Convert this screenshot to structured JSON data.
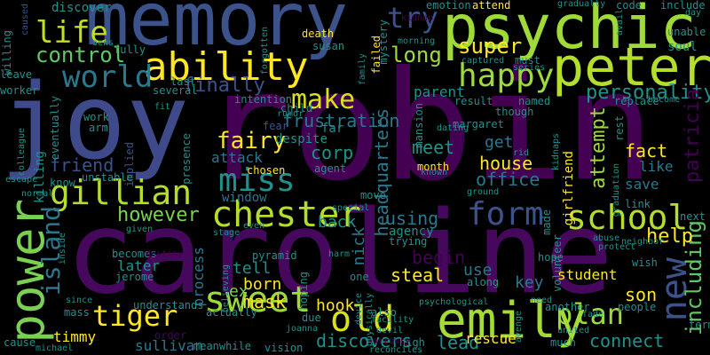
{
  "words": {
    "robin": "robin",
    "caroline": "caroline",
    "joy": "joy",
    "memory": "memory",
    "psychic": "psychic",
    "peter": "peter",
    "emily": "emily",
    "power": "power",
    "ability": "ability",
    "chester": "chester",
    "gillian": "gillian",
    "sweet": "sweet",
    "school": "school",
    "form": "form",
    "old": "old",
    "happy": "happy",
    "world": "world",
    "life": "life",
    "control": "control",
    "tiger": "tiger",
    "miss": "miss",
    "new": "new",
    "plan": "plan",
    "island": "island",
    "make": "make",
    "try": "try",
    "fairy": "fairy",
    "finally": "finally",
    "frustration": "frustration",
    "personality": "personality",
    "headquarters": "headquarters",
    "attempt": "attempt",
    "long": "long",
    "super": "super",
    "patricia": "patricia",
    "including": "including",
    "however": "however",
    "help": "help",
    "house": "house",
    "office": "office",
    "fact": "fact",
    "like": "like",
    "save": "save",
    "friend": "friend",
    "meet": "meet",
    "corp": "corp",
    "attack": "attack",
    "window": "window",
    "get": "get",
    "parent": "parent",
    "son": "son",
    "mask": "mask",
    "born": "born",
    "tell": "tell",
    "steal": "steal",
    "begin": "begin",
    "using": "using",
    "back": "back",
    "nick": "nick",
    "island2": "island",
    "hook": "hook",
    "discovers": "discovers",
    "lead": "lead",
    "rescue": "rescue",
    "connect": "connect",
    "timmy": "timmy",
    "sullivan": "sullivan",
    "student": "student",
    "key": "key",
    "use": "use",
    "process": "process",
    "later": "later",
    "jerome": "jerome",
    "becomes": "becomes",
    "understands": "understands",
    "actually": "actually",
    "killing": "killing",
    "implied": "implied",
    "work": "work",
    "arm": "arm",
    "eventually": "eventually",
    "discover": "discover",
    "emotion": "emotion",
    "attend": "attend",
    "code": "code",
    "include": "include",
    "unable": "unable",
    "soul": "soul",
    "avail": "avail",
    "death": "death",
    "susan": "susan",
    "mystery": "mystery",
    "failed": "failed",
    "family": "family",
    "forgotten": "forgotten",
    "caused": "caused",
    "willing": "willing",
    "sens": "sens",
    "leave": "leave",
    "worker": "worker",
    "last": "last",
    "several": "several",
    "intention": "intention",
    "child": "child",
    "rumor": "rumor",
    "fear": "fear",
    "far": "far",
    "despite": "despite",
    "margaret": "margaret",
    "dating": "dating",
    "mansion": "mansion",
    "named": "named",
    "though": "though",
    "result": "result",
    "replace": "replace",
    "become": "become",
    "rest": "rest",
    "girlfriend": "girlfriend",
    "month": "month",
    "rid": "rid",
    "chosen": "chosen",
    "agent": "agent",
    "presence": "presence",
    "unstable": "unstable",
    "know": "know",
    "escape": "escape",
    "colleague": "colleague",
    "normal": "normal",
    "move": "move",
    "special": "special",
    "agency": "agency",
    "trying": "trying",
    "made": "made",
    "volunteer": "volunteer",
    "link": "link",
    "next": "next",
    "pyramid": "pyramid",
    "believing": "believing",
    "stage": "stage",
    "even": "even",
    "harm": "harm",
    "hoping": "hoping",
    "one": "one",
    "along": "along",
    "hope": "hope",
    "protect": "protect",
    "wish": "wish",
    "abuse": "abuse",
    "neighbor": "neighbor",
    "term": "term",
    "people": "people",
    "fade": "fade",
    "another": "another",
    "need": "need",
    "psychological": "psychological",
    "also": "also",
    "facility": "facility",
    "devil": "devil",
    "due": "due",
    "joanna": "joanna",
    "vision": "vision",
    "meanwhile": "meanwhile",
    "order": "order",
    "high": "high",
    "reconciles": "reconciles",
    "much": "much",
    "mass": "mass",
    "since": "since",
    "cause": "cause",
    "michael": "michael",
    "inside": "inside",
    "given": "given",
    "destiny": "destiny",
    "kidnap": "kidnap",
    "morning": "morning",
    "must": "must",
    "series": "series",
    "captured": "captured",
    "gradually": "gradually",
    "day": "day",
    "graduation": "graduation",
    "kidnaps": "kidnaps",
    "known": "known",
    "ground": "ground",
    "narrowly": "narrowly",
    "united": "united",
    "avenge": "avenge",
    "fully": "fully",
    "fit": "fit",
    "ex": "ex",
    "device": "device",
    "physically": "physically"
  }
}
